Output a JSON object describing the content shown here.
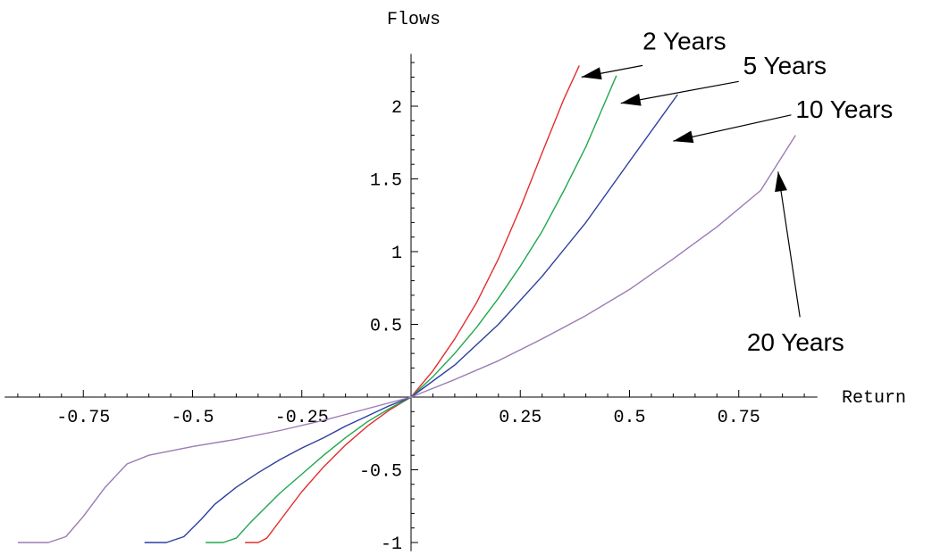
{
  "chart_data": {
    "type": "line",
    "title": "",
    "xlabel": "Return",
    "ylabel": "Flows",
    "xlim": [
      -0.93,
      0.93
    ],
    "ylim": [
      -1.06,
      2.36
    ],
    "grid": false,
    "x_ticks": [
      {
        "value": -0.75,
        "label": "-0.75"
      },
      {
        "value": -0.5,
        "label": "-0.5"
      },
      {
        "value": -0.25,
        "label": "-0.25"
      },
      {
        "value": 0.25,
        "label": "0.25"
      },
      {
        "value": 0.5,
        "label": "0.5"
      },
      {
        "value": 0.75,
        "label": "0.75"
      }
    ],
    "y_ticks": [
      {
        "value": -1,
        "label": "-1"
      },
      {
        "value": -0.5,
        "label": "-0.5"
      },
      {
        "value": 0.5,
        "label": "0.5"
      },
      {
        "value": 1,
        "label": "1"
      },
      {
        "value": 1.5,
        "label": "1.5"
      },
      {
        "value": 2,
        "label": "2"
      }
    ],
    "series": [
      {
        "color": "#e32d2d",
        "x": [
          -0.38,
          -0.35,
          -0.33,
          -0.3,
          -0.25,
          -0.2,
          -0.15,
          -0.1,
          -0.05,
          0,
          0.05,
          0.1,
          0.15,
          0.2,
          0.25,
          0.3,
          0.35,
          0.385
        ],
        "y": [
          -1.0,
          -1.0,
          -0.97,
          -0.85,
          -0.65,
          -0.48,
          -0.33,
          -0.2,
          -0.09,
          0,
          0.18,
          0.4,
          0.65,
          0.95,
          1.3,
          1.68,
          2.05,
          2.28
        ]
      },
      {
        "color": "#1fa84d",
        "x": [
          -0.47,
          -0.43,
          -0.4,
          -0.37,
          -0.3,
          -0.25,
          -0.2,
          -0.15,
          -0.1,
          -0.05,
          0,
          0.05,
          0.1,
          0.15,
          0.2,
          0.25,
          0.3,
          0.35,
          0.4,
          0.47
        ],
        "y": [
          -1.0,
          -1.0,
          -0.97,
          -0.87,
          -0.66,
          -0.53,
          -0.4,
          -0.28,
          -0.17,
          -0.08,
          0,
          0.14,
          0.3,
          0.48,
          0.68,
          0.9,
          1.14,
          1.42,
          1.72,
          2.21
        ]
      },
      {
        "color": "#2e3e9e",
        "x": [
          -0.61,
          -0.56,
          -0.52,
          -0.48,
          -0.45,
          -0.4,
          -0.35,
          -0.3,
          -0.25,
          -0.2,
          -0.15,
          -0.1,
          -0.05,
          0,
          0.1,
          0.2,
          0.3,
          0.4,
          0.5,
          0.61
        ],
        "y": [
          -1.0,
          -1.0,
          -0.96,
          -0.84,
          -0.74,
          -0.62,
          -0.52,
          -0.43,
          -0.35,
          -0.28,
          -0.2,
          -0.13,
          -0.06,
          0,
          0.22,
          0.5,
          0.83,
          1.2,
          1.62,
          2.08
        ]
      },
      {
        "color": "#9b7bb5",
        "x": [
          -0.9,
          -0.83,
          -0.79,
          -0.75,
          -0.7,
          -0.65,
          -0.6,
          -0.5,
          -0.4,
          -0.3,
          -0.2,
          -0.1,
          0,
          0.1,
          0.2,
          0.3,
          0.4,
          0.5,
          0.6,
          0.7,
          0.8,
          0.88
        ],
        "y": [
          -1.0,
          -1.0,
          -0.96,
          -0.82,
          -0.62,
          -0.46,
          -0.4,
          -0.34,
          -0.29,
          -0.23,
          -0.16,
          -0.08,
          0,
          0.12,
          0.25,
          0.4,
          0.56,
          0.74,
          0.95,
          1.17,
          1.42,
          1.8
        ]
      }
    ],
    "annotations": [
      {
        "text": "2 Years",
        "label_at": [
          0.53,
          2.39
        ],
        "label_anchor": "start",
        "arrow_from": [
          0.53,
          2.28
        ],
        "arrow_to": [
          0.39,
          2.2
        ]
      },
      {
        "text": "5 Years",
        "label_at": [
          0.76,
          2.22
        ],
        "label_anchor": "start",
        "arrow_from": [
          0.75,
          2.17
        ],
        "arrow_to": [
          0.48,
          2.02
        ]
      },
      {
        "text": "10 Years",
        "label_at": [
          0.88,
          1.92
        ],
        "label_anchor": "start",
        "arrow_from": [
          0.87,
          1.94
        ],
        "arrow_to": [
          0.6,
          1.76
        ]
      },
      {
        "text": "20 Years",
        "label_at": [
          0.88,
          0.32
        ],
        "label_anchor": "middle",
        "arrow_from": [
          0.89,
          0.55
        ],
        "arrow_to": [
          0.84,
          1.55
        ]
      }
    ]
  }
}
